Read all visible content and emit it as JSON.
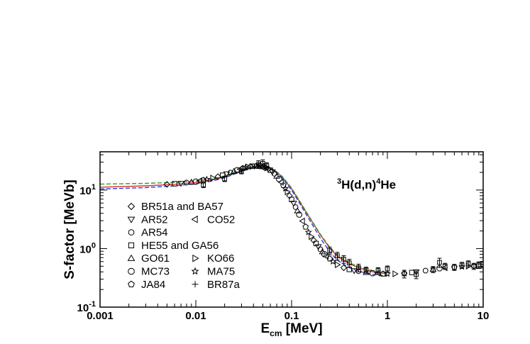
{
  "chart_data": {
    "type": "scatter",
    "title": "",
    "annotation": {
      "parts": [
        {
          "text": "3",
          "sup": true
        },
        {
          "text": "H(d,n)",
          "sup": false
        },
        {
          "text": "4",
          "sup": true
        },
        {
          "text": "He",
          "sup": false
        }
      ]
    },
    "xlabel": {
      "main": "E",
      "sub": "cm",
      "rest": " [MeV]"
    },
    "ylabel": "S-factor [MeVb]",
    "x_scale": "log",
    "y_scale": "log",
    "xlim": [
      0.001,
      10
    ],
    "ylim": [
      0.1,
      45
    ],
    "x_ticks": [
      {
        "value": 0.001,
        "label": "0.001"
      },
      {
        "value": 0.01,
        "label": "0.01"
      },
      {
        "value": 0.1,
        "label": "0.1"
      },
      {
        "value": 1,
        "label": "1"
      },
      {
        "value": 10,
        "label": "10"
      }
    ],
    "y_ticks": [
      {
        "value": 0.1,
        "base": "10",
        "exp": "-1"
      },
      {
        "value": 1,
        "base": "10",
        "exp": "0"
      },
      {
        "value": 10,
        "base": "10",
        "exp": "1"
      }
    ],
    "grid": false,
    "legend_position": "lower-left",
    "legend": [
      {
        "marker": "diamond",
        "label": "BR51a and BA57"
      },
      {
        "marker": "triangle-down",
        "label": "AR52"
      },
      {
        "marker": "triangle-left",
        "label": "CO52"
      },
      {
        "marker": "circle",
        "label": "AR54"
      },
      {
        "marker": "square",
        "label": "HE55 and GA56"
      },
      {
        "marker": "triangle-up",
        "label": "GO61"
      },
      {
        "marker": "triangle-right",
        "label": "KO66"
      },
      {
        "marker": "octagon",
        "label": "MC73"
      },
      {
        "marker": "star",
        "label": "MA75"
      },
      {
        "marker": "pentagon",
        "label": "JA84"
      },
      {
        "marker": "cross",
        "label": "BR87a"
      }
    ],
    "curves": [
      {
        "color": "#e03030",
        "style": "solid",
        "x": [
          0.001,
          0.003,
          0.006,
          0.01,
          0.015,
          0.02,
          0.03,
          0.04,
          0.05,
          0.06,
          0.07,
          0.08,
          0.1,
          0.12,
          0.15,
          0.2,
          0.25,
          0.3,
          0.4,
          0.5,
          0.7,
          1.0
        ],
        "y": [
          11.2,
          11.8,
          12.5,
          13.5,
          15.0,
          17.0,
          21.5,
          25.0,
          25.5,
          23.5,
          20.0,
          16.5,
          10.5,
          6.5,
          3.6,
          1.7,
          1.02,
          0.74,
          0.55,
          0.47,
          0.4,
          0.37
        ]
      },
      {
        "color": "#2a9d2a",
        "style": "dashed",
        "x": [
          0.001,
          0.003,
          0.006,
          0.01,
          0.015,
          0.02,
          0.03,
          0.04,
          0.05,
          0.06,
          0.07,
          0.08,
          0.1,
          0.12,
          0.15,
          0.2,
          0.25,
          0.3,
          0.4,
          0.5,
          0.7,
          1.0
        ],
        "y": [
          12.6,
          13.0,
          13.5,
          14.3,
          15.6,
          17.4,
          22.0,
          25.5,
          26.0,
          24.0,
          20.5,
          17.0,
          10.8,
          6.7,
          3.7,
          1.75,
          1.06,
          0.77,
          0.57,
          0.49,
          0.42,
          0.39
        ]
      },
      {
        "color": "#2a3fd8",
        "style": "dashed",
        "x": [
          0.001,
          0.003,
          0.006,
          0.01,
          0.015,
          0.02,
          0.03,
          0.04,
          0.05,
          0.06,
          0.07,
          0.08,
          0.1,
          0.12,
          0.15,
          0.2,
          0.25,
          0.3,
          0.4,
          0.5,
          0.7,
          1.0
        ],
        "y": [
          10.4,
          11.0,
          11.8,
          12.8,
          14.3,
          16.2,
          20.8,
          24.3,
          25.0,
          23.0,
          19.6,
          16.0,
          10.0,
          6.1,
          3.3,
          1.5,
          0.88,
          0.63,
          0.47,
          0.41,
          0.36,
          0.34
        ]
      }
    ],
    "points": {
      "x": [
        0.005,
        0.006,
        0.007,
        0.008,
        0.009,
        0.01,
        0.011,
        0.012,
        0.013,
        0.015,
        0.017,
        0.019,
        0.021,
        0.023,
        0.025,
        0.027,
        0.029,
        0.031,
        0.033,
        0.035,
        0.037,
        0.039,
        0.041,
        0.043,
        0.045,
        0.047,
        0.049,
        0.051,
        0.053,
        0.055,
        0.057,
        0.06,
        0.063,
        0.066,
        0.07,
        0.074,
        0.078,
        0.082,
        0.086,
        0.09,
        0.095,
        0.1,
        0.105,
        0.11,
        0.115,
        0.12,
        0.13,
        0.14,
        0.15,
        0.16,
        0.17,
        0.18,
        0.19,
        0.2,
        0.21,
        0.22,
        0.23,
        0.25,
        0.27,
        0.3,
        0.35,
        0.4,
        0.45,
        0.5,
        0.6,
        0.7,
        0.8,
        0.9,
        1.0,
        1.2,
        1.5,
        1.8,
        2.0,
        2.5,
        3.0,
        3.5,
        4.0,
        5.0,
        6.0,
        7.0,
        8.0,
        9.0,
        10.0
      ],
      "y": [
        12.5,
        12.8,
        13.0,
        13.4,
        13.6,
        13.9,
        14.4,
        14.8,
        15.2,
        16.0,
        16.9,
        17.9,
        18.9,
        19.9,
        20.8,
        21.8,
        22.7,
        23.5,
        24.2,
        24.8,
        25.2,
        25.5,
        25.7,
        25.8,
        25.8,
        25.6,
        25.3,
        25.0,
        24.4,
        23.8,
        23.0,
        21.8,
        20.4,
        19.0,
        17.2,
        15.4,
        13.6,
        12.0,
        10.6,
        9.3,
        8.0,
        6.9,
        5.95,
        5.1,
        4.4,
        3.8,
        2.95,
        2.35,
        1.9,
        1.6,
        1.38,
        1.22,
        1.08,
        0.97,
        0.88,
        0.8,
        0.74,
        0.67,
        0.6,
        0.53,
        0.47,
        0.44,
        0.42,
        0.41,
        0.39,
        0.38,
        0.38,
        0.37,
        0.37,
        0.37,
        0.38,
        0.39,
        0.4,
        0.42,
        0.44,
        0.46,
        0.47,
        0.48,
        0.49,
        0.5,
        0.5,
        0.5,
        0.5
      ]
    },
    "error_bar_points": {
      "x": [
        0.012,
        0.02,
        0.03,
        0.045,
        0.05,
        0.055,
        0.25,
        0.3,
        0.35,
        0.4,
        0.5,
        0.6,
        0.8,
        1.0,
        1.5,
        2.0,
        3.0,
        3.5,
        4.0,
        5.0,
        6.0,
        7.0,
        8.0,
        9.0,
        10.0
      ],
      "y": [
        12.2,
        15.5,
        21.0,
        27.5,
        28.5,
        26.0,
        0.92,
        0.75,
        0.66,
        0.57,
        0.47,
        0.43,
        0.42,
        0.45,
        0.37,
        0.36,
        0.44,
        0.58,
        0.5,
        0.48,
        0.52,
        0.55,
        0.5,
        0.53,
        0.54
      ],
      "err": [
        0.1,
        0.1,
        0.1,
        0.15,
        0.15,
        0.12,
        0.15,
        0.15,
        0.15,
        0.15,
        0.15,
        0.12,
        0.12,
        0.12,
        0.15,
        0.15,
        0.12,
        0.18,
        0.12,
        0.12,
        0.12,
        0.12,
        0.12,
        0.12,
        0.12
      ]
    }
  }
}
